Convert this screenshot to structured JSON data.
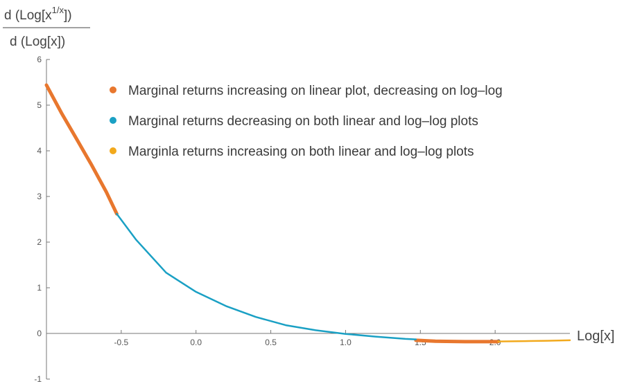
{
  "chart_data": {
    "type": "line",
    "title": "",
    "xlabel": "Log[x]",
    "ylabel": {
      "numerator_prefix": "d (Log[x",
      "numerator_superscript": "1/x",
      "numerator_suffix": "])",
      "denominator": "d (Log[x])"
    },
    "xlim": [
      -1.0,
      2.5
    ],
    "ylim": [
      -1,
      6
    ],
    "x_ticks": [
      "-0.5",
      "0.0",
      "0.5",
      "1.0",
      "1.5",
      "2.0"
    ],
    "y_ticks": [
      "-1",
      "0",
      "1",
      "2",
      "3",
      "4",
      "5",
      "6"
    ],
    "x_tick_values": [
      -0.5,
      0.0,
      0.5,
      1.0,
      1.5,
      2.0
    ],
    "y_tick_values": [
      -1,
      0,
      1,
      2,
      3,
      4,
      5,
      6
    ],
    "grid": false,
    "legend_position": "top-right",
    "series": [
      {
        "name": "Marginal returns increasing on linear plot, decreasing on log–log",
        "color": "#E8772E",
        "segments": [
          [
            [
              -1.0,
              5.44
            ],
            [
              -0.9,
              4.83
            ],
            [
              -0.8,
              4.27
            ],
            [
              -0.7,
              3.7
            ],
            [
              -0.6,
              3.1
            ],
            [
              -0.53,
              2.62
            ]
          ],
          [
            [
              1.47,
              -0.15
            ],
            [
              1.6,
              -0.17
            ],
            [
              1.8,
              -0.18
            ],
            [
              2.0,
              -0.18
            ],
            [
              2.02,
              -0.18
            ]
          ]
        ]
      },
      {
        "name": "Marginal returns decreasing on both linear and log–log plots",
        "color": "#1AA0C4",
        "segments": [
          [
            [
              -0.53,
              2.62
            ],
            [
              -0.4,
              2.05
            ],
            [
              -0.2,
              1.33
            ],
            [
              0.0,
              0.91
            ],
            [
              0.2,
              0.6
            ],
            [
              0.4,
              0.36
            ],
            [
              0.6,
              0.18
            ],
            [
              0.8,
              0.07
            ],
            [
              1.0,
              -0.01
            ],
            [
              1.2,
              -0.07
            ],
            [
              1.4,
              -0.12
            ],
            [
              1.47,
              -0.13
            ]
          ]
        ]
      },
      {
        "name": "Marginla returns increasing on both linear and log–log plots",
        "color": "#F2A91C",
        "segments": [
          [
            [
              2.02,
              -0.175
            ],
            [
              2.2,
              -0.168
            ],
            [
              2.35,
              -0.16
            ],
            [
              2.5,
              -0.15
            ]
          ]
        ]
      }
    ]
  }
}
